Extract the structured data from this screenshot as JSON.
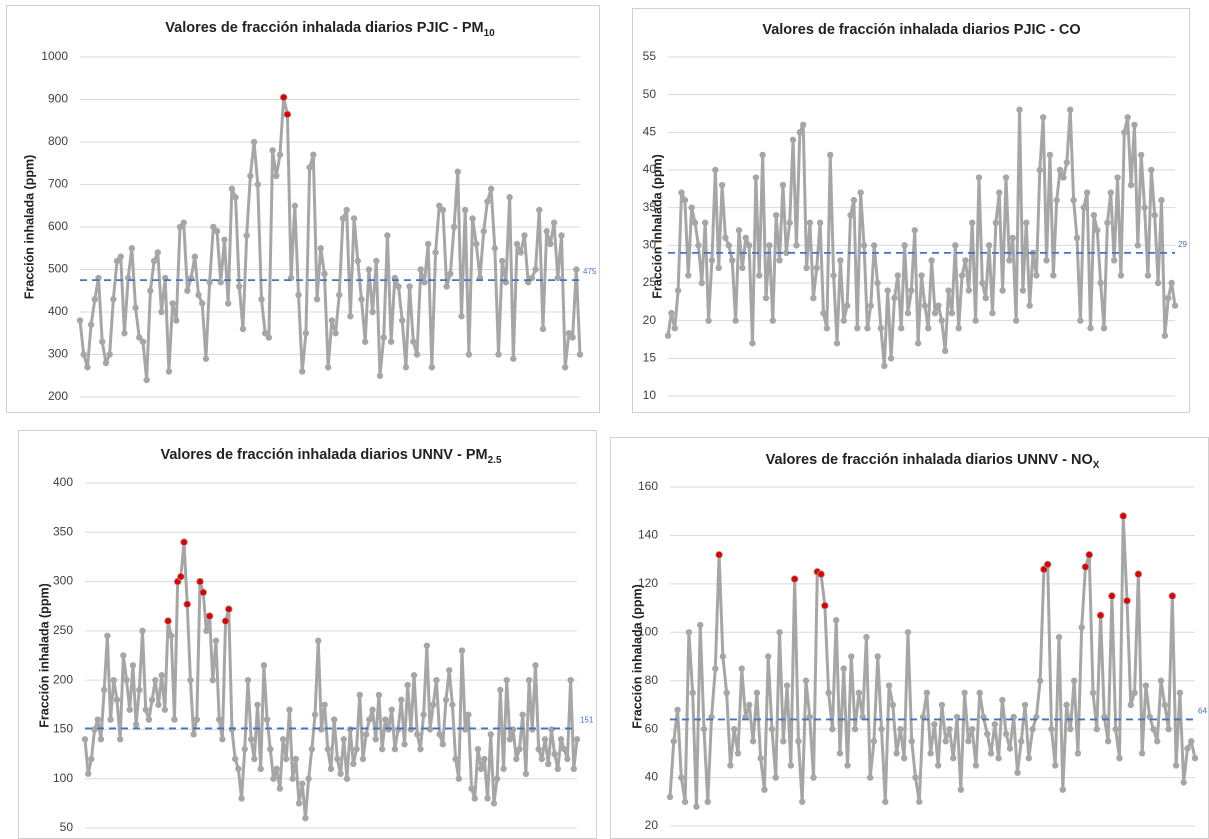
{
  "chart_data": [
    {
      "type": "line",
      "title": "Valores de fracción inhalada diarios PJIC - PM",
      "title_sub": "10",
      "y_label": "Fracción inhalada (ppm)",
      "ylim": [
        200,
        1000
      ],
      "yticks": [
        200,
        300,
        400,
        500,
        600,
        700,
        800,
        900,
        1000
      ],
      "grid": true,
      "reference_line": {
        "value": 475,
        "color": "#4472c4"
      },
      "series": [
        {
          "type": "line",
          "color": "#a6a6a6",
          "values": [
            380,
            300,
            270,
            370,
            430,
            480,
            330,
            280,
            300,
            430,
            520,
            530,
            350,
            480,
            550,
            410,
            340,
            330,
            240,
            450,
            520,
            540,
            400,
            480,
            260,
            420,
            380,
            600,
            610,
            450,
            480,
            530,
            440,
            420,
            290,
            470,
            600,
            590,
            470,
            570,
            420,
            690,
            670,
            460,
            360,
            580,
            720,
            800,
            700,
            430,
            350,
            340,
            780,
            720,
            770,
            905,
            865,
            480,
            650,
            440,
            260,
            350,
            740,
            770,
            430,
            550,
            490,
            270,
            380,
            350,
            440,
            620,
            640,
            390,
            620,
            520,
            430,
            330,
            500,
            400,
            520,
            250,
            340,
            580,
            330,
            480,
            460,
            380,
            270,
            460,
            330,
            300,
            500,
            470,
            560,
            270,
            540,
            650,
            640,
            460,
            490,
            600,
            730,
            390,
            640,
            300,
            620,
            560,
            480,
            590,
            660,
            690,
            550,
            300,
            520,
            470,
            670,
            290,
            560,
            540,
            580,
            470,
            480,
            500,
            640,
            360,
            590,
            560,
            610,
            480,
            580,
            270,
            350,
            340,
            500,
            300
          ]
        },
        {
          "type": "scatter",
          "color": "#e00000",
          "x": [
            55,
            56
          ],
          "values": [
            905,
            865
          ]
        }
      ]
    },
    {
      "type": "line",
      "title": "Valores de fracción inhalada diarios PJIC - CO",
      "y_label": "Fracción inhalada (ppm)",
      "ylim": [
        10,
        55
      ],
      "yticks": [
        10,
        15,
        20,
        25,
        30,
        35,
        40,
        45,
        50,
        55
      ],
      "grid": true,
      "reference_line": {
        "value": 29,
        "color": "#4472c4"
      },
      "series": [
        {
          "type": "line",
          "color": "#a6a6a6",
          "values": [
            18,
            21,
            19,
            24,
            37,
            36,
            26,
            35,
            33,
            30,
            25,
            33,
            20,
            28,
            40,
            27,
            38,
            31,
            30,
            28,
            20,
            32,
            27,
            31,
            30,
            17,
            39,
            26,
            42,
            23,
            30,
            20,
            34,
            28,
            38,
            29,
            33,
            44,
            30,
            45,
            46,
            27,
            33,
            23,
            27,
            33,
            21,
            19,
            42,
            26,
            17,
            28,
            20,
            22,
            34,
            36,
            19,
            37,
            30,
            19,
            22,
            30,
            25,
            19,
            14,
            24,
            15,
            23,
            26,
            19,
            30,
            21,
            24,
            32,
            17,
            26,
            22,
            19,
            28,
            21,
            22,
            20,
            16,
            24,
            21,
            30,
            19,
            26,
            28,
            24,
            33,
            20,
            39,
            25,
            23,
            30,
            21,
            33,
            37,
            24,
            39,
            28,
            31,
            20,
            48,
            24,
            33,
            22,
            29,
            26,
            40,
            47,
            28,
            42,
            26,
            36,
            40,
            39,
            41,
            48,
            36,
            31,
            20,
            35,
            37,
            19,
            34,
            32,
            25,
            19,
            33,
            37,
            28,
            39,
            26,
            45,
            47,
            38,
            46,
            30,
            42,
            35,
            26,
            40,
            34,
            25,
            36,
            18,
            23,
            25,
            22
          ]
        }
      ]
    },
    {
      "type": "line",
      "title": "Valores de fracción inhalada diarios UNNV - PM",
      "title_sub": "2.5",
      "y_label": "Fracción inhalada (ppm)",
      "ylim": [
        50,
        400
      ],
      "yticks": [
        50,
        100,
        150,
        200,
        250,
        300,
        350,
        400
      ],
      "grid": true,
      "reference_line": {
        "value": 151,
        "color": "#4472c4"
      },
      "series": [
        {
          "type": "line",
          "color": "#a6a6a6",
          "values": [
            140,
            105,
            120,
            150,
            160,
            140,
            190,
            245,
            160,
            200,
            180,
            140,
            225,
            200,
            170,
            215,
            155,
            190,
            250,
            170,
            160,
            180,
            200,
            175,
            205,
            170,
            260,
            245,
            160,
            300,
            305,
            340,
            277,
            200,
            145,
            160,
            300,
            289,
            250,
            265,
            200,
            240,
            160,
            140,
            260,
            272,
            150,
            120,
            110,
            80,
            130,
            200,
            140,
            120,
            175,
            110,
            215,
            160,
            130,
            100,
            110,
            90,
            140,
            120,
            170,
            100,
            120,
            75,
            95,
            60,
            100,
            130,
            165,
            240,
            150,
            175,
            130,
            110,
            160,
            120,
            105,
            140,
            100,
            150,
            115,
            130,
            185,
            120,
            145,
            160,
            170,
            140,
            185,
            130,
            160,
            150,
            170,
            130,
            150,
            180,
            135,
            195,
            150,
            205,
            145,
            130,
            165,
            235,
            150,
            175,
            200,
            145,
            135,
            180,
            210,
            175,
            120,
            100,
            230,
            150,
            165,
            90,
            80,
            130,
            110,
            120,
            80,
            145,
            75,
            100,
            190,
            110,
            200,
            140,
            150,
            120,
            130,
            165,
            105,
            200,
            150,
            215,
            130,
            120,
            140,
            115,
            150,
            125,
            110,
            140,
            130,
            120,
            200,
            110,
            140
          ]
        },
        {
          "type": "scatter",
          "color": "#e00000",
          "x": [
            26,
            29,
            30,
            31,
            32,
            36,
            37,
            39,
            44,
            45
          ],
          "values": [
            260,
            300,
            305,
            340,
            277,
            300,
            289,
            265,
            260,
            272
          ]
        }
      ]
    },
    {
      "type": "line",
      "title": "Valores de fracción inhalada diarios UNNV - NO",
      "title_sub": "X",
      "y_label": "Fracción inhalada (ppm)",
      "ylim": [
        20,
        160
      ],
      "yticks": [
        20,
        40,
        60,
        80,
        100,
        120,
        140,
        160
      ],
      "grid": true,
      "reference_line": {
        "value": 64,
        "color": "#4472c4"
      },
      "series": [
        {
          "type": "line",
          "color": "#a6a6a6",
          "values": [
            32,
            55,
            68,
            40,
            30,
            100,
            75,
            28,
            103,
            60,
            30,
            65,
            85,
            132,
            90,
            75,
            45,
            60,
            50,
            85,
            65,
            70,
            55,
            75,
            48,
            35,
            90,
            60,
            40,
            100,
            55,
            78,
            45,
            122,
            55,
            30,
            80,
            65,
            40,
            125,
            124,
            111,
            75,
            60,
            105,
            50,
            85,
            45,
            90,
            60,
            75,
            65,
            98,
            40,
            55,
            90,
            60,
            30,
            78,
            70,
            50,
            60,
            48,
            100,
            55,
            40,
            30,
            65,
            75,
            50,
            62,
            45,
            70,
            55,
            60,
            48,
            65,
            35,
            75,
            55,
            60,
            45,
            75,
            65,
            58,
            50,
            62,
            48,
            72,
            58,
            52,
            65,
            42,
            55,
            70,
            48,
            60,
            65,
            80,
            126,
            128,
            60,
            45,
            98,
            35,
            70,
            60,
            80,
            50,
            102,
            127,
            132,
            75,
            60,
            107,
            65,
            55,
            115,
            60,
            48,
            148,
            113,
            70,
            75,
            124,
            50,
            78,
            65,
            60,
            55,
            80,
            70,
            60,
            115,
            45,
            75,
            38,
            52,
            55,
            48
          ]
        },
        {
          "type": "scatter",
          "color": "#e00000",
          "x": [
            13,
            33,
            39,
            40,
            41,
            99,
            100,
            110,
            111,
            114,
            117,
            120,
            121,
            124,
            133
          ],
          "values": [
            132,
            122,
            125,
            124,
            111,
            126,
            128,
            127,
            132,
            107,
            115,
            148,
            113,
            124,
            115
          ]
        }
      ]
    }
  ]
}
